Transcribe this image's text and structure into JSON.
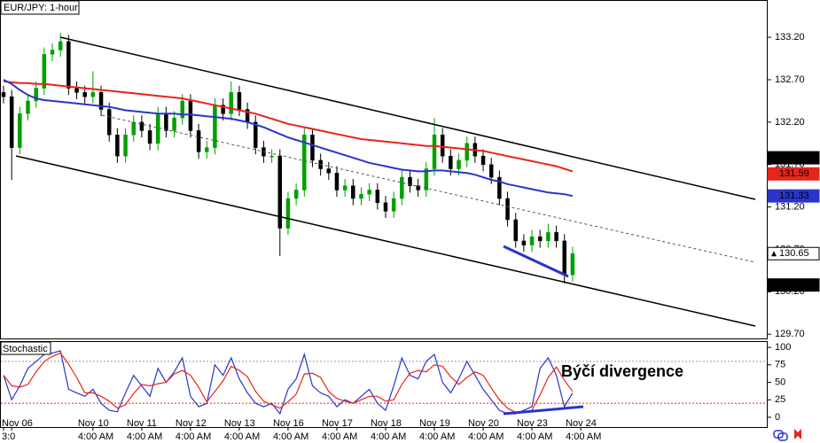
{
  "chart_data": [
    {
      "type": "candlestick",
      "title": "EUR/JPY: 1-hour",
      "categories": [
        null,
        "Nov 06",
        null,
        null,
        null,
        null,
        null,
        null,
        null,
        null,
        null,
        "Nov 10",
        null,
        null,
        null,
        null,
        null,
        "Nov 11",
        null,
        null,
        null,
        null,
        null,
        "Nov 12",
        null,
        null,
        null,
        null,
        null,
        "Nov 13",
        null,
        null,
        null,
        null,
        null,
        "Nov 16",
        null,
        null,
        null,
        null,
        null,
        "Nov 17",
        null,
        null,
        null,
        null,
        null,
        "Nov 18",
        null,
        null,
        null,
        null,
        null,
        "Nov 19",
        null,
        null,
        null,
        null,
        null,
        "Nov 20",
        null,
        null,
        null,
        null,
        null,
        "Nov 23",
        null,
        null,
        null,
        null,
        null,
        "Nov 24"
      ],
      "time_labels": [
        "3:0",
        null,
        null,
        null,
        null,
        null,
        null,
        null,
        null,
        null,
        null,
        "4:00 AM",
        null,
        null,
        null,
        null,
        null,
        "4:00 AM",
        null,
        null,
        null,
        null,
        null,
        "4:00 AM",
        null,
        null,
        null,
        null,
        null,
        "4:00 AM",
        null,
        null,
        null,
        null,
        null,
        "4:00 AM",
        null,
        null,
        null,
        null,
        null,
        "4:00 AM",
        null,
        null,
        null,
        null,
        null,
        "4:00 AM",
        null,
        null,
        null,
        null,
        null,
        "4:00 AM",
        null,
        null,
        null,
        null,
        null,
        "4:00 AM",
        null,
        null,
        null,
        null,
        null,
        "4:00 AM",
        null,
        null,
        null,
        null,
        null,
        "4:00 AM"
      ],
      "open": [
        132.55,
        132.5,
        131.9,
        132.3,
        132.45,
        132.6,
        133.0,
        133.05,
        133.15,
        132.6,
        132.55,
        132.5,
        132.55,
        132.35,
        132.05,
        131.8,
        132.05,
        132.2,
        132.1,
        131.95,
        132.3,
        132.1,
        132.25,
        132.45,
        132.1,
        131.85,
        131.9,
        132.4,
        132.3,
        132.55,
        132.35,
        132.2,
        131.9,
        131.8,
        131.8,
        130.95,
        131.3,
        131.4,
        132.05,
        131.75,
        131.65,
        131.6,
        131.4,
        131.45,
        131.3,
        131.35,
        131.4,
        131.25,
        131.15,
        131.3,
        131.55,
        131.45,
        131.4,
        131.65,
        132.05,
        131.8,
        131.65,
        131.75,
        131.95,
        131.8,
        131.7,
        131.55,
        131.3,
        131.05,
        130.8,
        130.75,
        130.85,
        130.8,
        130.9,
        130.8,
        130.4,
        null
      ],
      "high": [
        132.63,
        132.58,
        132.38,
        132.53,
        132.68,
        133.08,
        133.13,
        133.25,
        133.23,
        132.68,
        132.63,
        132.8,
        132.63,
        132.43,
        132.13,
        132.13,
        132.28,
        132.28,
        132.18,
        132.38,
        132.38,
        132.33,
        132.53,
        132.53,
        132.18,
        131.98,
        132.48,
        132.48,
        132.68,
        132.63,
        132.43,
        132.28,
        131.98,
        131.88,
        131.88,
        131.38,
        131.48,
        132.13,
        132.13,
        131.83,
        131.73,
        131.68,
        131.53,
        131.53,
        131.43,
        131.48,
        131.48,
        131.33,
        131.38,
        131.63,
        131.63,
        131.53,
        131.73,
        132.25,
        132.13,
        131.88,
        131.83,
        132.03,
        132.03,
        131.88,
        131.78,
        131.63,
        131.38,
        131.13,
        130.88,
        130.93,
        130.93,
        131.0,
        130.98,
        130.88,
        130.73,
        null
      ],
      "low": [
        132.42,
        131.52,
        131.82,
        132.22,
        132.37,
        132.52,
        132.92,
        132.97,
        132.52,
        132.47,
        132.42,
        132.42,
        132.27,
        131.97,
        131.72,
        131.72,
        131.97,
        132.02,
        131.87,
        131.87,
        132.02,
        132.02,
        132.17,
        132.02,
        131.77,
        131.77,
        131.82,
        132.22,
        132.22,
        132.27,
        132.12,
        131.82,
        131.72,
        131.72,
        130.62,
        130.87,
        131.22,
        131.32,
        131.67,
        131.57,
        131.52,
        131.32,
        131.32,
        131.22,
        131.22,
        131.27,
        131.17,
        131.07,
        131.07,
        131.22,
        131.37,
        131.32,
        131.32,
        131.57,
        131.72,
        131.57,
        131.57,
        131.67,
        131.72,
        131.62,
        131.47,
        131.22,
        130.97,
        130.72,
        130.67,
        130.67,
        130.72,
        130.72,
        130.72,
        130.3,
        130.32,
        null
      ],
      "close": [
        132.5,
        131.9,
        132.3,
        132.45,
        132.6,
        133.0,
        133.05,
        133.15,
        132.6,
        132.55,
        132.5,
        132.55,
        132.35,
        132.05,
        131.8,
        132.05,
        132.2,
        132.1,
        131.95,
        132.3,
        132.1,
        132.25,
        132.45,
        132.1,
        131.85,
        131.9,
        132.4,
        132.3,
        132.55,
        132.35,
        132.2,
        131.9,
        131.8,
        131.8,
        130.95,
        131.3,
        131.4,
        132.05,
        131.75,
        131.65,
        131.6,
        131.4,
        131.45,
        131.3,
        131.35,
        131.4,
        131.25,
        131.15,
        131.3,
        131.55,
        131.45,
        131.4,
        131.65,
        132.05,
        131.8,
        131.65,
        131.75,
        131.95,
        131.8,
        131.7,
        131.55,
        131.3,
        131.05,
        130.8,
        130.75,
        130.85,
        130.8,
        130.9,
        130.8,
        130.4,
        130.65,
        null
      ],
      "up_color": "#00a000",
      "down_color": "#000000",
      "series": [
        {
          "color": "#e8251b",
          "values": [
            132.68,
            132.67,
            132.66,
            132.66,
            132.65,
            132.65,
            132.64,
            132.63,
            132.62,
            132.61,
            132.6,
            132.59,
            132.58,
            132.57,
            132.56,
            132.55,
            132.54,
            132.53,
            132.52,
            132.51,
            132.5,
            132.49,
            132.48,
            132.46,
            132.44,
            132.42,
            132.4,
            132.38,
            132.36,
            132.34,
            132.32,
            132.3,
            132.27,
            132.24,
            132.21,
            132.18,
            132.16,
            132.14,
            132.12,
            132.1,
            132.08,
            132.06,
            132.04,
            132.02,
            132.0,
            131.99,
            131.98,
            131.97,
            131.96,
            131.95,
            131.94,
            131.93,
            131.92,
            131.92,
            131.91,
            131.9,
            131.89,
            131.88,
            131.87,
            131.86,
            131.84,
            131.82,
            131.8,
            131.78,
            131.76,
            131.74,
            131.72,
            131.7,
            131.68,
            131.65,
            131.62,
            null
          ]
        },
        {
          "color": "#2a35c9",
          "values": [
            132.7,
            132.65,
            132.58,
            132.52,
            132.48,
            132.46,
            132.45,
            132.44,
            132.43,
            132.42,
            132.41,
            132.4,
            132.39,
            132.38,
            132.36,
            132.34,
            132.33,
            132.32,
            132.31,
            132.3,
            132.3,
            132.3,
            132.29,
            132.29,
            132.28,
            132.27,
            132.26,
            132.25,
            132.24,
            132.22,
            132.2,
            132.17,
            132.14,
            132.1,
            132.06,
            132.02,
            131.99,
            131.96,
            131.93,
            131.9,
            131.87,
            131.84,
            131.81,
            131.78,
            131.75,
            131.72,
            131.7,
            131.68,
            131.66,
            131.64,
            131.63,
            131.62,
            131.62,
            131.63,
            131.63,
            131.62,
            131.61,
            131.6,
            131.58,
            131.55,
            131.52,
            131.5,
            131.47,
            131.45,
            131.43,
            131.41,
            131.39,
            131.37,
            131.36,
            131.35,
            131.33,
            null
          ]
        }
      ],
      "ylim": [
        129.65,
        133.64
      ],
      "yticks": [
        {
          "value": 133.2,
          "label": "133.20"
        },
        {
          "value": 132.7,
          "label": "132.70"
        },
        {
          "value": 132.2,
          "label": "132.20"
        },
        {
          "value": 131.7,
          "label": "131.70"
        },
        {
          "value": 131.2,
          "label": "131.20"
        },
        {
          "value": 130.7,
          "label": "130.70"
        },
        {
          "value": 130.2,
          "label": "130.20"
        },
        {
          "value": 129.7,
          "label": "129.70"
        }
      ],
      "price_tags": [
        {
          "value": 131.78,
          "color": "#000000"
        },
        {
          "value": 131.59,
          "color": "#e8251b"
        },
        {
          "value": 131.33,
          "color": "#2a35c9"
        },
        {
          "value": 130.65,
          "color": "#ffffff"
        },
        {
          "value": 130.28,
          "color": "#000000"
        }
      ]
    },
    {
      "type": "line",
      "title": "Stochastic",
      "annotation": "Býčí divergence",
      "series": [
        {
          "color": "#2a35c9",
          "values": [
            60,
            25,
            45,
            70,
            80,
            90,
            92,
            95,
            40,
            35,
            30,
            40,
            20,
            10,
            8,
            35,
            60,
            45,
            30,
            70,
            50,
            65,
            85,
            30,
            15,
            20,
            75,
            60,
            85,
            55,
            35,
            20,
            15,
            20,
            5,
            40,
            55,
            90,
            45,
            35,
            30,
            15,
            25,
            20,
            30,
            40,
            20,
            10,
            45,
            85,
            60,
            55,
            80,
            90,
            50,
            35,
            55,
            80,
            60,
            40,
            25,
            10,
            5,
            5,
            10,
            15,
            70,
            85,
            60,
            15,
            35,
            null
          ]
        },
        {
          "color": "#e8251b",
          "values": [
            60,
            45,
            43,
            47,
            65,
            80,
            87,
            92,
            76,
            57,
            35,
            35,
            30,
            23,
            13,
            18,
            34,
            47,
            45,
            48,
            50,
            62,
            67,
            60,
            43,
            22,
            37,
            52,
            73,
            67,
            58,
            37,
            23,
            18,
            13,
            22,
            33,
            62,
            63,
            57,
            37,
            27,
            23,
            20,
            25,
            30,
            30,
            23,
            25,
            47,
            63,
            67,
            65,
            75,
            73,
            58,
            47,
            57,
            65,
            60,
            42,
            25,
            13,
            7,
            7,
            10,
            32,
            57,
            72,
            53,
            37,
            null
          ]
        }
      ],
      "ylim": [
        -14,
        109
      ],
      "yticks": [
        100,
        75,
        50,
        25,
        0
      ],
      "levels": [
        {
          "value": 80,
          "color": "#999999"
        },
        {
          "value": 20,
          "color": "#e8251b"
        }
      ]
    }
  ]
}
